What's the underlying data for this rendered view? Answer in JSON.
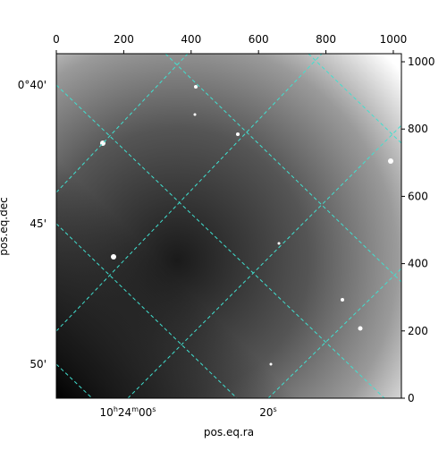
{
  "chart_data": {
    "type": "image",
    "xlim": [
      0,
      1024
    ],
    "ylim": [
      0,
      1024
    ],
    "xticks": [
      0,
      200,
      400,
      600,
      800,
      1000
    ],
    "yticks": [
      0,
      200,
      400,
      600,
      800,
      1000
    ],
    "xlabel": "pos.eq.ra",
    "ylabel": "pos.eq.dec",
    "ra_ticks": [
      [
        "10",
        "h",
        "24",
        "m",
        "00",
        "s"
      ],
      [
        "20",
        "s"
      ]
    ],
    "dec_ticks": [
      "0°40'",
      "45'",
      "50'"
    ],
    "grid_color": "#40e0d0"
  }
}
